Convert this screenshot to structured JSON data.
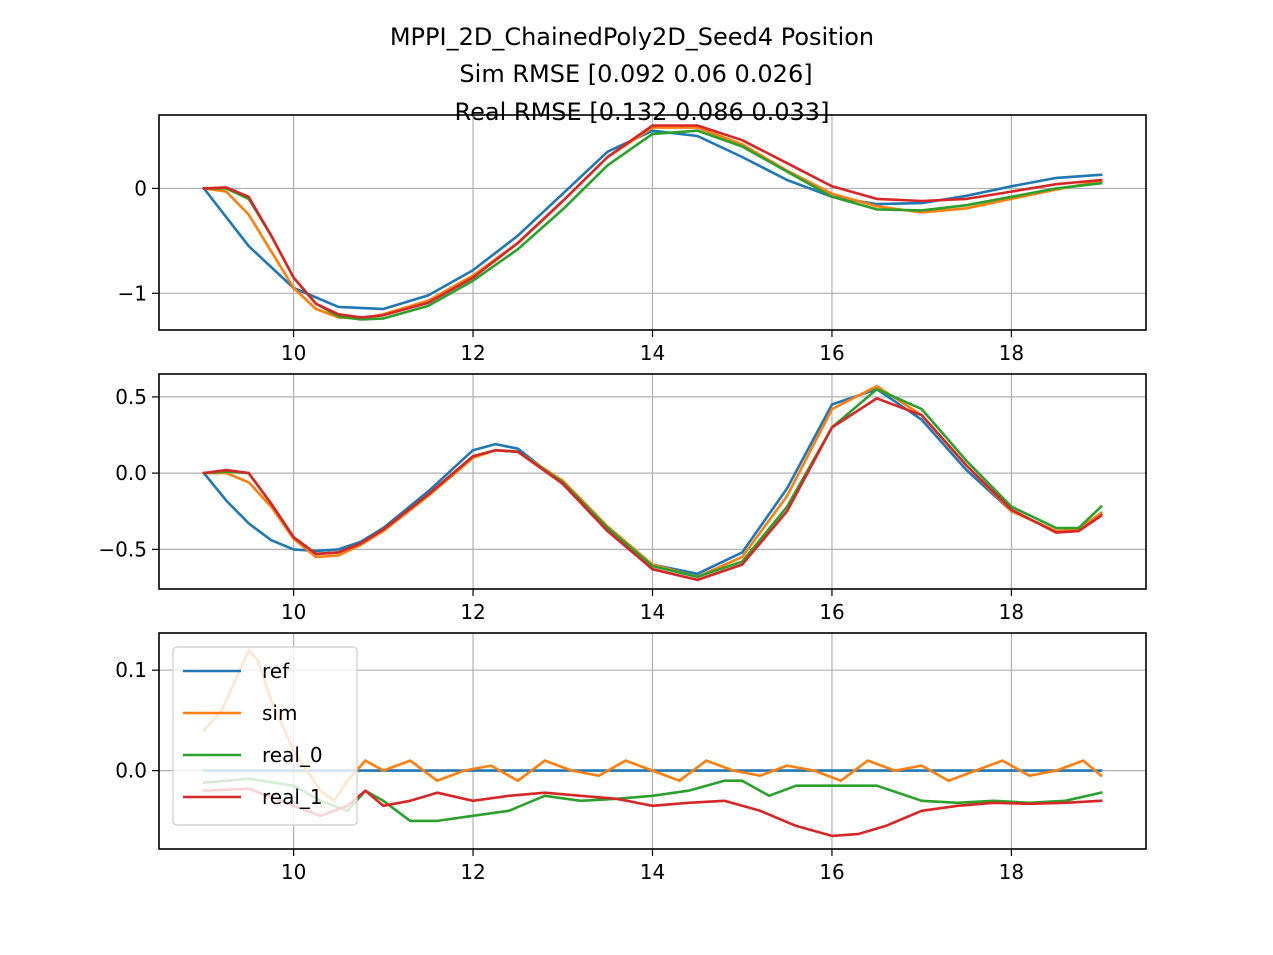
{
  "figure": {
    "title_lines": [
      "MPPI_2D_ChainedPoly2D_Seed4   Position",
      "Sim RMSE [0.092 0.06  0.026]",
      "Real RMSE [0.132 0.086 0.033]"
    ]
  },
  "colors": {
    "ref": "#1f77b4",
    "sim": "#ff7f0e",
    "real_0": "#2ca02c",
    "real_1": "#d62728",
    "grid": "#b0b0b0"
  },
  "chart_data": [
    {
      "type": "line",
      "title": "",
      "xlabel": "",
      "ylabel": "",
      "xlim": [
        8.5,
        19.5
      ],
      "ylim": [
        -1.35,
        0.7
      ],
      "grid": true,
      "x_ticks": [
        10,
        12,
        14,
        16,
        18
      ],
      "x_tick_labels": [
        "10",
        "12",
        "14",
        "16",
        "18"
      ],
      "y_ticks": [
        -1,
        0
      ],
      "y_tick_labels": [
        "−1",
        "0"
      ],
      "series": [
        {
          "key": "ref",
          "x": [
            9.0,
            9.5,
            10.0,
            10.5,
            11.0,
            11.5,
            12.0,
            12.5,
            13.0,
            13.5,
            14.0,
            14.5,
            15.0,
            15.5,
            16.0,
            16.5,
            17.0,
            17.5,
            18.0,
            18.5,
            19.0
          ],
          "values": [
            0.0,
            -0.55,
            -0.95,
            -1.13,
            -1.15,
            -1.02,
            -0.78,
            -0.45,
            -0.05,
            0.35,
            0.55,
            0.5,
            0.3,
            0.08,
            -0.08,
            -0.15,
            -0.14,
            -0.07,
            0.02,
            0.1,
            0.13
          ]
        },
        {
          "key": "sim",
          "x": [
            9.0,
            9.25,
            9.5,
            9.75,
            10.0,
            10.25,
            10.5,
            10.75,
            11.0,
            11.5,
            12.0,
            12.5,
            13.0,
            13.5,
            14.0,
            14.5,
            15.0,
            15.5,
            16.0,
            16.5,
            17.0,
            17.5,
            18.0,
            18.5,
            19.0
          ],
          "values": [
            0.0,
            -0.03,
            -0.25,
            -0.6,
            -0.95,
            -1.15,
            -1.23,
            -1.24,
            -1.2,
            -1.07,
            -0.83,
            -0.52,
            -0.12,
            0.3,
            0.58,
            0.58,
            0.42,
            0.17,
            -0.05,
            -0.17,
            -0.23,
            -0.19,
            -0.1,
            -0.01,
            0.07
          ]
        },
        {
          "key": "real_0",
          "x": [
            9.0,
            9.25,
            9.5,
            9.75,
            10.0,
            10.25,
            10.5,
            10.75,
            11.0,
            11.5,
            12.0,
            12.5,
            13.0,
            13.5,
            14.0,
            14.5,
            15.0,
            15.5,
            16.0,
            16.5,
            17.0,
            17.5,
            18.0,
            18.5,
            19.0
          ],
          "values": [
            0.0,
            0.0,
            -0.1,
            -0.45,
            -0.85,
            -1.1,
            -1.22,
            -1.25,
            -1.24,
            -1.12,
            -0.88,
            -0.58,
            -0.2,
            0.22,
            0.52,
            0.55,
            0.4,
            0.16,
            -0.08,
            -0.2,
            -0.21,
            -0.16,
            -0.08,
            0.0,
            0.05
          ]
        },
        {
          "key": "real_1",
          "x": [
            9.0,
            9.25,
            9.5,
            9.75,
            10.0,
            10.25,
            10.5,
            10.75,
            11.0,
            11.5,
            12.0,
            12.5,
            13.0,
            13.5,
            14.0,
            14.5,
            15.0,
            15.5,
            16.0,
            16.5,
            17.0,
            17.5,
            18.0,
            18.5,
            19.0
          ],
          "values": [
            0.0,
            0.01,
            -0.08,
            -0.45,
            -0.85,
            -1.1,
            -1.2,
            -1.23,
            -1.21,
            -1.09,
            -0.85,
            -0.52,
            -0.12,
            0.3,
            0.6,
            0.6,
            0.46,
            0.24,
            0.02,
            -0.1,
            -0.12,
            -0.1,
            -0.03,
            0.04,
            0.08
          ]
        }
      ]
    },
    {
      "type": "line",
      "title": "",
      "xlabel": "",
      "ylabel": "",
      "xlim": [
        8.5,
        19.5
      ],
      "ylim": [
        -0.76,
        0.65
      ],
      "grid": true,
      "x_ticks": [
        10,
        12,
        14,
        16,
        18
      ],
      "x_tick_labels": [
        "10",
        "12",
        "14",
        "16",
        "18"
      ],
      "y_ticks": [
        -0.5,
        0.0,
        0.5
      ],
      "y_tick_labels": [
        "−0.5",
        "0.0",
        "0.5"
      ],
      "series": [
        {
          "key": "ref",
          "x": [
            9.0,
            9.25,
            9.5,
            9.75,
            10.0,
            10.25,
            10.5,
            10.75,
            11.0,
            11.5,
            12.0,
            12.25,
            12.5,
            13.0,
            13.5,
            14.0,
            14.5,
            15.0,
            15.5,
            16.0,
            16.5,
            17.0,
            17.5,
            18.0,
            18.5,
            18.75,
            19.0
          ],
          "values": [
            0.0,
            -0.18,
            -0.33,
            -0.44,
            -0.5,
            -0.51,
            -0.5,
            -0.45,
            -0.36,
            -0.12,
            0.15,
            0.19,
            0.16,
            -0.07,
            -0.38,
            -0.6,
            -0.66,
            -0.52,
            -0.1,
            0.45,
            0.55,
            0.35,
            0.02,
            -0.25,
            -0.38,
            -0.37,
            -0.27
          ]
        },
        {
          "key": "sim",
          "x": [
            9.0,
            9.25,
            9.5,
            9.75,
            10.0,
            10.25,
            10.5,
            10.75,
            11.0,
            11.5,
            12.0,
            12.25,
            12.5,
            13.0,
            13.5,
            14.0,
            14.5,
            15.0,
            15.5,
            16.0,
            16.5,
            17.0,
            17.5,
            18.0,
            18.5,
            18.75,
            19.0
          ],
          "values": [
            0.0,
            0.0,
            -0.06,
            -0.22,
            -0.43,
            -0.55,
            -0.54,
            -0.47,
            -0.38,
            -0.15,
            0.1,
            0.15,
            0.14,
            -0.05,
            -0.35,
            -0.6,
            -0.68,
            -0.55,
            -0.15,
            0.42,
            0.57,
            0.38,
            0.05,
            -0.25,
            -0.38,
            -0.37,
            -0.26
          ]
        },
        {
          "key": "real_0",
          "x": [
            9.0,
            9.25,
            9.5,
            9.75,
            10.0,
            10.25,
            10.5,
            10.75,
            11.0,
            11.5,
            12.0,
            12.25,
            12.5,
            13.0,
            13.5,
            14.0,
            14.5,
            15.0,
            15.5,
            16.0,
            16.5,
            17.0,
            17.5,
            18.0,
            18.5,
            18.75,
            19.0
          ],
          "values": [
            0.0,
            0.01,
            0.0,
            -0.2,
            -0.42,
            -0.53,
            -0.52,
            -0.46,
            -0.37,
            -0.14,
            0.11,
            0.15,
            0.14,
            -0.06,
            -0.36,
            -0.61,
            -0.68,
            -0.58,
            -0.22,
            0.3,
            0.55,
            0.42,
            0.08,
            -0.22,
            -0.36,
            -0.36,
            -0.22
          ]
        },
        {
          "key": "real_1",
          "x": [
            9.0,
            9.25,
            9.5,
            9.75,
            10.0,
            10.25,
            10.5,
            10.75,
            11.0,
            11.5,
            12.0,
            12.25,
            12.5,
            13.0,
            13.5,
            14.0,
            14.5,
            15.0,
            15.5,
            16.0,
            16.5,
            17.0,
            17.5,
            18.0,
            18.5,
            18.75,
            19.0
          ],
          "values": [
            0.0,
            0.02,
            0.0,
            -0.2,
            -0.42,
            -0.53,
            -0.52,
            -0.46,
            -0.37,
            -0.14,
            0.11,
            0.15,
            0.14,
            -0.07,
            -0.38,
            -0.63,
            -0.7,
            -0.6,
            -0.25,
            0.3,
            0.49,
            0.38,
            0.05,
            -0.24,
            -0.39,
            -0.38,
            -0.28
          ]
        }
      ]
    },
    {
      "type": "line",
      "title": "",
      "xlabel": "",
      "ylabel": "",
      "xlim": [
        8.5,
        19.5
      ],
      "ylim": [
        -0.078,
        0.137
      ],
      "grid": true,
      "legend": {
        "placement": "upper-left",
        "entries": [
          "ref",
          "sim",
          "real_0",
          "real_1"
        ]
      },
      "x_ticks": [
        10,
        12,
        14,
        16,
        18
      ],
      "x_tick_labels": [
        "10",
        "12",
        "14",
        "16",
        "18"
      ],
      "y_ticks": [
        0.0,
        0.1
      ],
      "y_tick_labels": [
        "0.0",
        "0.1"
      ],
      "series": [
        {
          "key": "ref",
          "x": [
            9.0,
            19.0
          ],
          "values": [
            0.0,
            0.0
          ]
        },
        {
          "key": "sim",
          "x": [
            9.0,
            9.2,
            9.35,
            9.5,
            9.6,
            9.75,
            9.9,
            10.0,
            10.15,
            10.3,
            10.45,
            10.6,
            10.8,
            11.0,
            11.3,
            11.6,
            11.9,
            12.2,
            12.5,
            12.8,
            13.1,
            13.4,
            13.7,
            14.0,
            14.3,
            14.6,
            14.9,
            15.2,
            15.5,
            15.8,
            16.1,
            16.4,
            16.7,
            17.0,
            17.3,
            17.6,
            17.9,
            18.2,
            18.5,
            18.8,
            19.0
          ],
          "values": [
            0.04,
            0.06,
            0.09,
            0.12,
            0.11,
            0.07,
            0.04,
            0.02,
            0.0,
            -0.02,
            -0.03,
            -0.01,
            0.01,
            0.0,
            0.01,
            -0.01,
            0.0,
            0.005,
            -0.01,
            0.01,
            0.0,
            -0.005,
            0.01,
            0.0,
            -0.01,
            0.01,
            0.0,
            -0.005,
            0.005,
            0.0,
            -0.01,
            0.01,
            0.0,
            0.005,
            -0.01,
            0.0,
            0.01,
            -0.005,
            0.0,
            0.01,
            -0.005
          ]
        },
        {
          "key": "real_0",
          "x": [
            9.0,
            9.5,
            10.0,
            10.3,
            10.6,
            10.8,
            11.0,
            11.3,
            11.6,
            12.0,
            12.4,
            12.8,
            13.2,
            13.6,
            14.0,
            14.4,
            14.8,
            15.0,
            15.3,
            15.6,
            16.0,
            16.5,
            17.0,
            17.4,
            17.8,
            18.2,
            18.6,
            19.0
          ],
          "values": [
            -0.012,
            -0.008,
            -0.015,
            -0.03,
            -0.04,
            -0.02,
            -0.03,
            -0.05,
            -0.05,
            -0.045,
            -0.04,
            -0.025,
            -0.03,
            -0.028,
            -0.025,
            -0.02,
            -0.01,
            -0.01,
            -0.025,
            -0.015,
            -0.015,
            -0.015,
            -0.03,
            -0.032,
            -0.03,
            -0.032,
            -0.03,
            -0.022
          ]
        },
        {
          "key": "real_1",
          "x": [
            9.0,
            9.5,
            10.0,
            10.3,
            10.6,
            10.8,
            11.0,
            11.3,
            11.6,
            12.0,
            12.4,
            12.8,
            13.2,
            13.6,
            14.0,
            14.4,
            14.8,
            15.2,
            15.6,
            16.0,
            16.3,
            16.6,
            17.0,
            17.4,
            17.8,
            18.2,
            18.6,
            19.0
          ],
          "values": [
            -0.02,
            -0.018,
            -0.035,
            -0.045,
            -0.035,
            -0.02,
            -0.035,
            -0.03,
            -0.022,
            -0.03,
            -0.025,
            -0.022,
            -0.025,
            -0.028,
            -0.035,
            -0.032,
            -0.03,
            -0.04,
            -0.055,
            -0.065,
            -0.063,
            -0.055,
            -0.04,
            -0.035,
            -0.032,
            -0.033,
            -0.032,
            -0.03
          ]
        }
      ]
    }
  ]
}
